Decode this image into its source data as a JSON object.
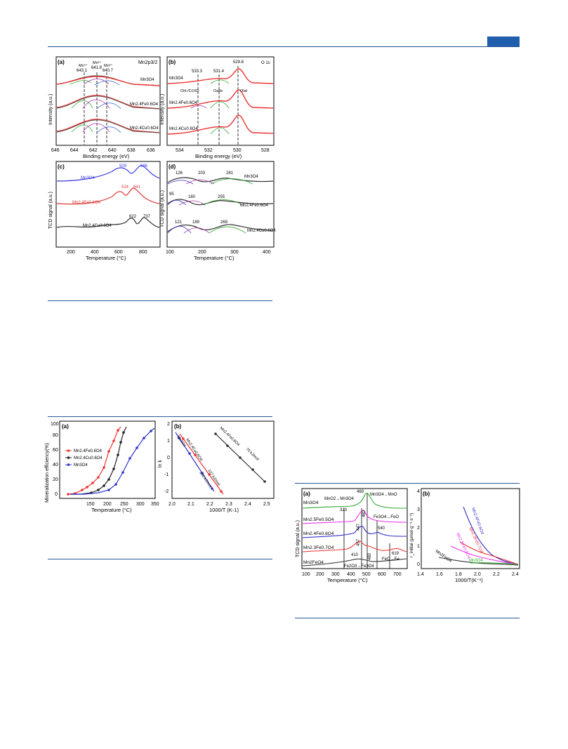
{
  "page_header": {
    "accent_color": "#1f5fae"
  },
  "figure_top": {
    "panel_a": {
      "tag": "(a)",
      "title": "Mn2p3/2",
      "ylabel": "Intensity (a.u.)",
      "xlabel": "Binding energy (eV)",
      "xticks": [
        "646",
        "644",
        "642",
        "640",
        "638",
        "636"
      ],
      "peaks": [
        {
          "state": "Mn4+",
          "value": "643.1"
        },
        {
          "state": "Mn3+",
          "value": "641.8"
        },
        {
          "state": "Mn2+",
          "value": "640.7"
        }
      ],
      "curves": [
        "Mn3O4",
        "Mn2.4Fe0.6O4",
        "Mn2.4Cu0.6O4"
      ]
    },
    "panel_b": {
      "tag": "(b)",
      "title": "O 1s",
      "ylabel": "Intensity (a.u.)",
      "xlabel": "Binding energy (eV)",
      "xticks": [
        "534",
        "532",
        "530",
        "528"
      ],
      "peaks": [
        "533.3",
        "531.4",
        "529.8"
      ],
      "annotations": [
        "OH-/CO32-",
        "Oads",
        "Olat"
      ],
      "curves": [
        "Mn3O4",
        "Mn2.4Fe0.6O4",
        "Mn2.4Cu0.6O4"
      ]
    },
    "panel_c": {
      "tag": "(c)",
      "ylabel": "TCD signal (a.u.)",
      "xlabel": "Temperature (°C)",
      "xticks": [
        "200",
        "400",
        "600",
        "800"
      ],
      "curves": [
        {
          "name": "Mn3O4",
          "color": "#3a3ae0",
          "peaks": [
            "509",
            "696"
          ]
        },
        {
          "name": "Mn2.4Fe0.6O4",
          "color": "#e03a3a",
          "peaks": [
            "524",
            "641"
          ]
        },
        {
          "name": "Mn2.4Cu0.6O4",
          "color": "#333333",
          "peaks": [
            "622",
            "737"
          ]
        }
      ]
    },
    "panel_d": {
      "tag": "(d)",
      "ylabel": "TCD signal (a.u.)",
      "xlabel": "Temperature (°C)",
      "xticks": [
        "100",
        "200",
        "300",
        "400"
      ],
      "curves": [
        {
          "name": "Mn3O4",
          "peaks": [
            "126",
            "203",
            "281"
          ]
        },
        {
          "name": "Mn2.4Fe0.6O4",
          "peaks": [
            "95",
            "160",
            "255"
          ]
        },
        {
          "name": "Mn2.4Cu0.6O4",
          "peaks": [
            "121",
            "189",
            "269"
          ]
        }
      ]
    }
  },
  "figure_mid": {
    "panel_a": {
      "tag": "(a)",
      "ylabel": "Mineralization efficiency(%)",
      "xlabel": "Temperature (°C)",
      "xticks": [
        "150",
        "200",
        "250",
        "300",
        "350"
      ],
      "yticks": [
        "0",
        "20",
        "40",
        "60",
        "80",
        "100"
      ],
      "legend": [
        "Mn2.4Fe0.6O4",
        "Mn2.4Cu0.6O4",
        "Mn3O4"
      ]
    },
    "panel_b": {
      "tag": "(b)",
      "ylabel": "ln k",
      "xlabel": "1000/T (K-1)",
      "xticks": [
        "2.0",
        "2.1",
        "2.2",
        "2.3",
        "2.4",
        "2.5"
      ],
      "yticks": [
        "2",
        "1",
        "0",
        "-1",
        "-2"
      ],
      "line_labels": [
        "Mn3O4",
        "Mn2.4Cu0.6O4",
        "Mn2.4Fe0.6O4"
      ],
      "energies": [
        "130 kJ/mol",
        "127 kJ/mol",
        "70 kJ/mol"
      ]
    }
  },
  "figure_right": {
    "panel_a": {
      "tag": "(a)",
      "ylabel": "TCD signal (a.u.)",
      "xlabel": "Temperature (°C)",
      "xticks": [
        "100",
        "200",
        "300",
        "400",
        "500",
        "600",
        "700"
      ],
      "curve_labels": [
        "Mn3O4",
        "Mn2.5Fe0.5O4",
        "Mn2.4Fe0.6O4",
        "Mn2.3Fe0.7O4",
        "Mn2FeO4"
      ],
      "peak_values": [
        "323",
        "469",
        "460",
        "447",
        "540",
        "457",
        "410",
        "480",
        "619"
      ],
      "reactions": [
        "MnO2→Mn3O4",
        "Mn3O4→MnO",
        "Fe3O4→FeO",
        "Fe2O3→Fe3O4",
        "FeO→Fe"
      ]
    },
    "panel_b": {
      "tag": "(b)",
      "ylabel": "r_initial (μmol·g⁻¹·s⁻¹)",
      "xlabel": "1000/T(K⁻¹)",
      "xticks": [
        "1.4",
        "1.6",
        "1.8",
        "2.0",
        "2.2",
        "2.4"
      ],
      "yticks": [
        "0",
        "1",
        "2",
        "3",
        "4"
      ],
      "curve_labels": [
        "Mn2.4Fe0.6O4",
        "Mn2.3Fe0.7O4",
        "Mn2.5Fe0.5O4",
        "Mn2FeO4",
        "Mn3O4"
      ]
    }
  }
}
